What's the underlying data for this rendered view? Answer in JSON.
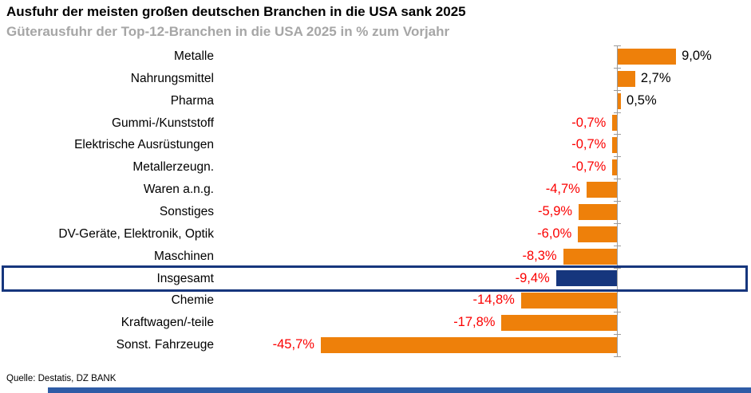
{
  "chart_data": {
    "type": "bar",
    "orientation": "horizontal",
    "title": "Ausfuhr der meisten großen deutschen Branchen in die USA sank 2025",
    "subtitle": "Güterausfuhr der Top-12-Branchen in die USA 2025 in % zum Vorjahr",
    "source": "Quelle: Destatis, DZ BANK",
    "categories": [
      "Metalle",
      "Nahrungsmittel",
      "Pharma",
      "Gummi-/Kunststoff",
      "Elektrische Ausrüstungen",
      "Metallerzeugn.",
      "Waren a.n.g.",
      "Sonstiges",
      "DV-Geräte, Elektronik, Optik",
      "Maschinen",
      "Insgesamt",
      "Chemie",
      "Kraftwagen/-teile",
      "Sonst. Fahrzeuge"
    ],
    "values": [
      9.0,
      2.7,
      0.5,
      -0.7,
      -0.7,
      -0.7,
      -4.7,
      -5.9,
      -6.0,
      -8.3,
      -9.4,
      -14.8,
      -17.8,
      -45.7
    ],
    "value_labels": [
      "9,0%",
      "2,7%",
      "0,5%",
      "-0,7%",
      "-0,7%",
      "-0,7%",
      "-4,7%",
      "-5,9%",
      "-6,0%",
      "-8,3%",
      "-9,4%",
      "-14,8%",
      "-17,8%",
      "-45,7%"
    ],
    "highlight_index": 10,
    "highlight_category": "Insgesamt",
    "xlim": [
      -50,
      12
    ],
    "zero_axis_line": true,
    "gridlines": false,
    "legend": "none"
  },
  "colors": {
    "bar_orange": "#EE800A",
    "bar_navy": "#16367D",
    "highlight_border": "#16367D",
    "negative_label": "#FB0000",
    "positive_label": "#000000",
    "subtitle_gray": "#A6A6A6",
    "axis_gray": "#9B9B9B",
    "bottom_strip_blue": "#2E5CA6"
  }
}
